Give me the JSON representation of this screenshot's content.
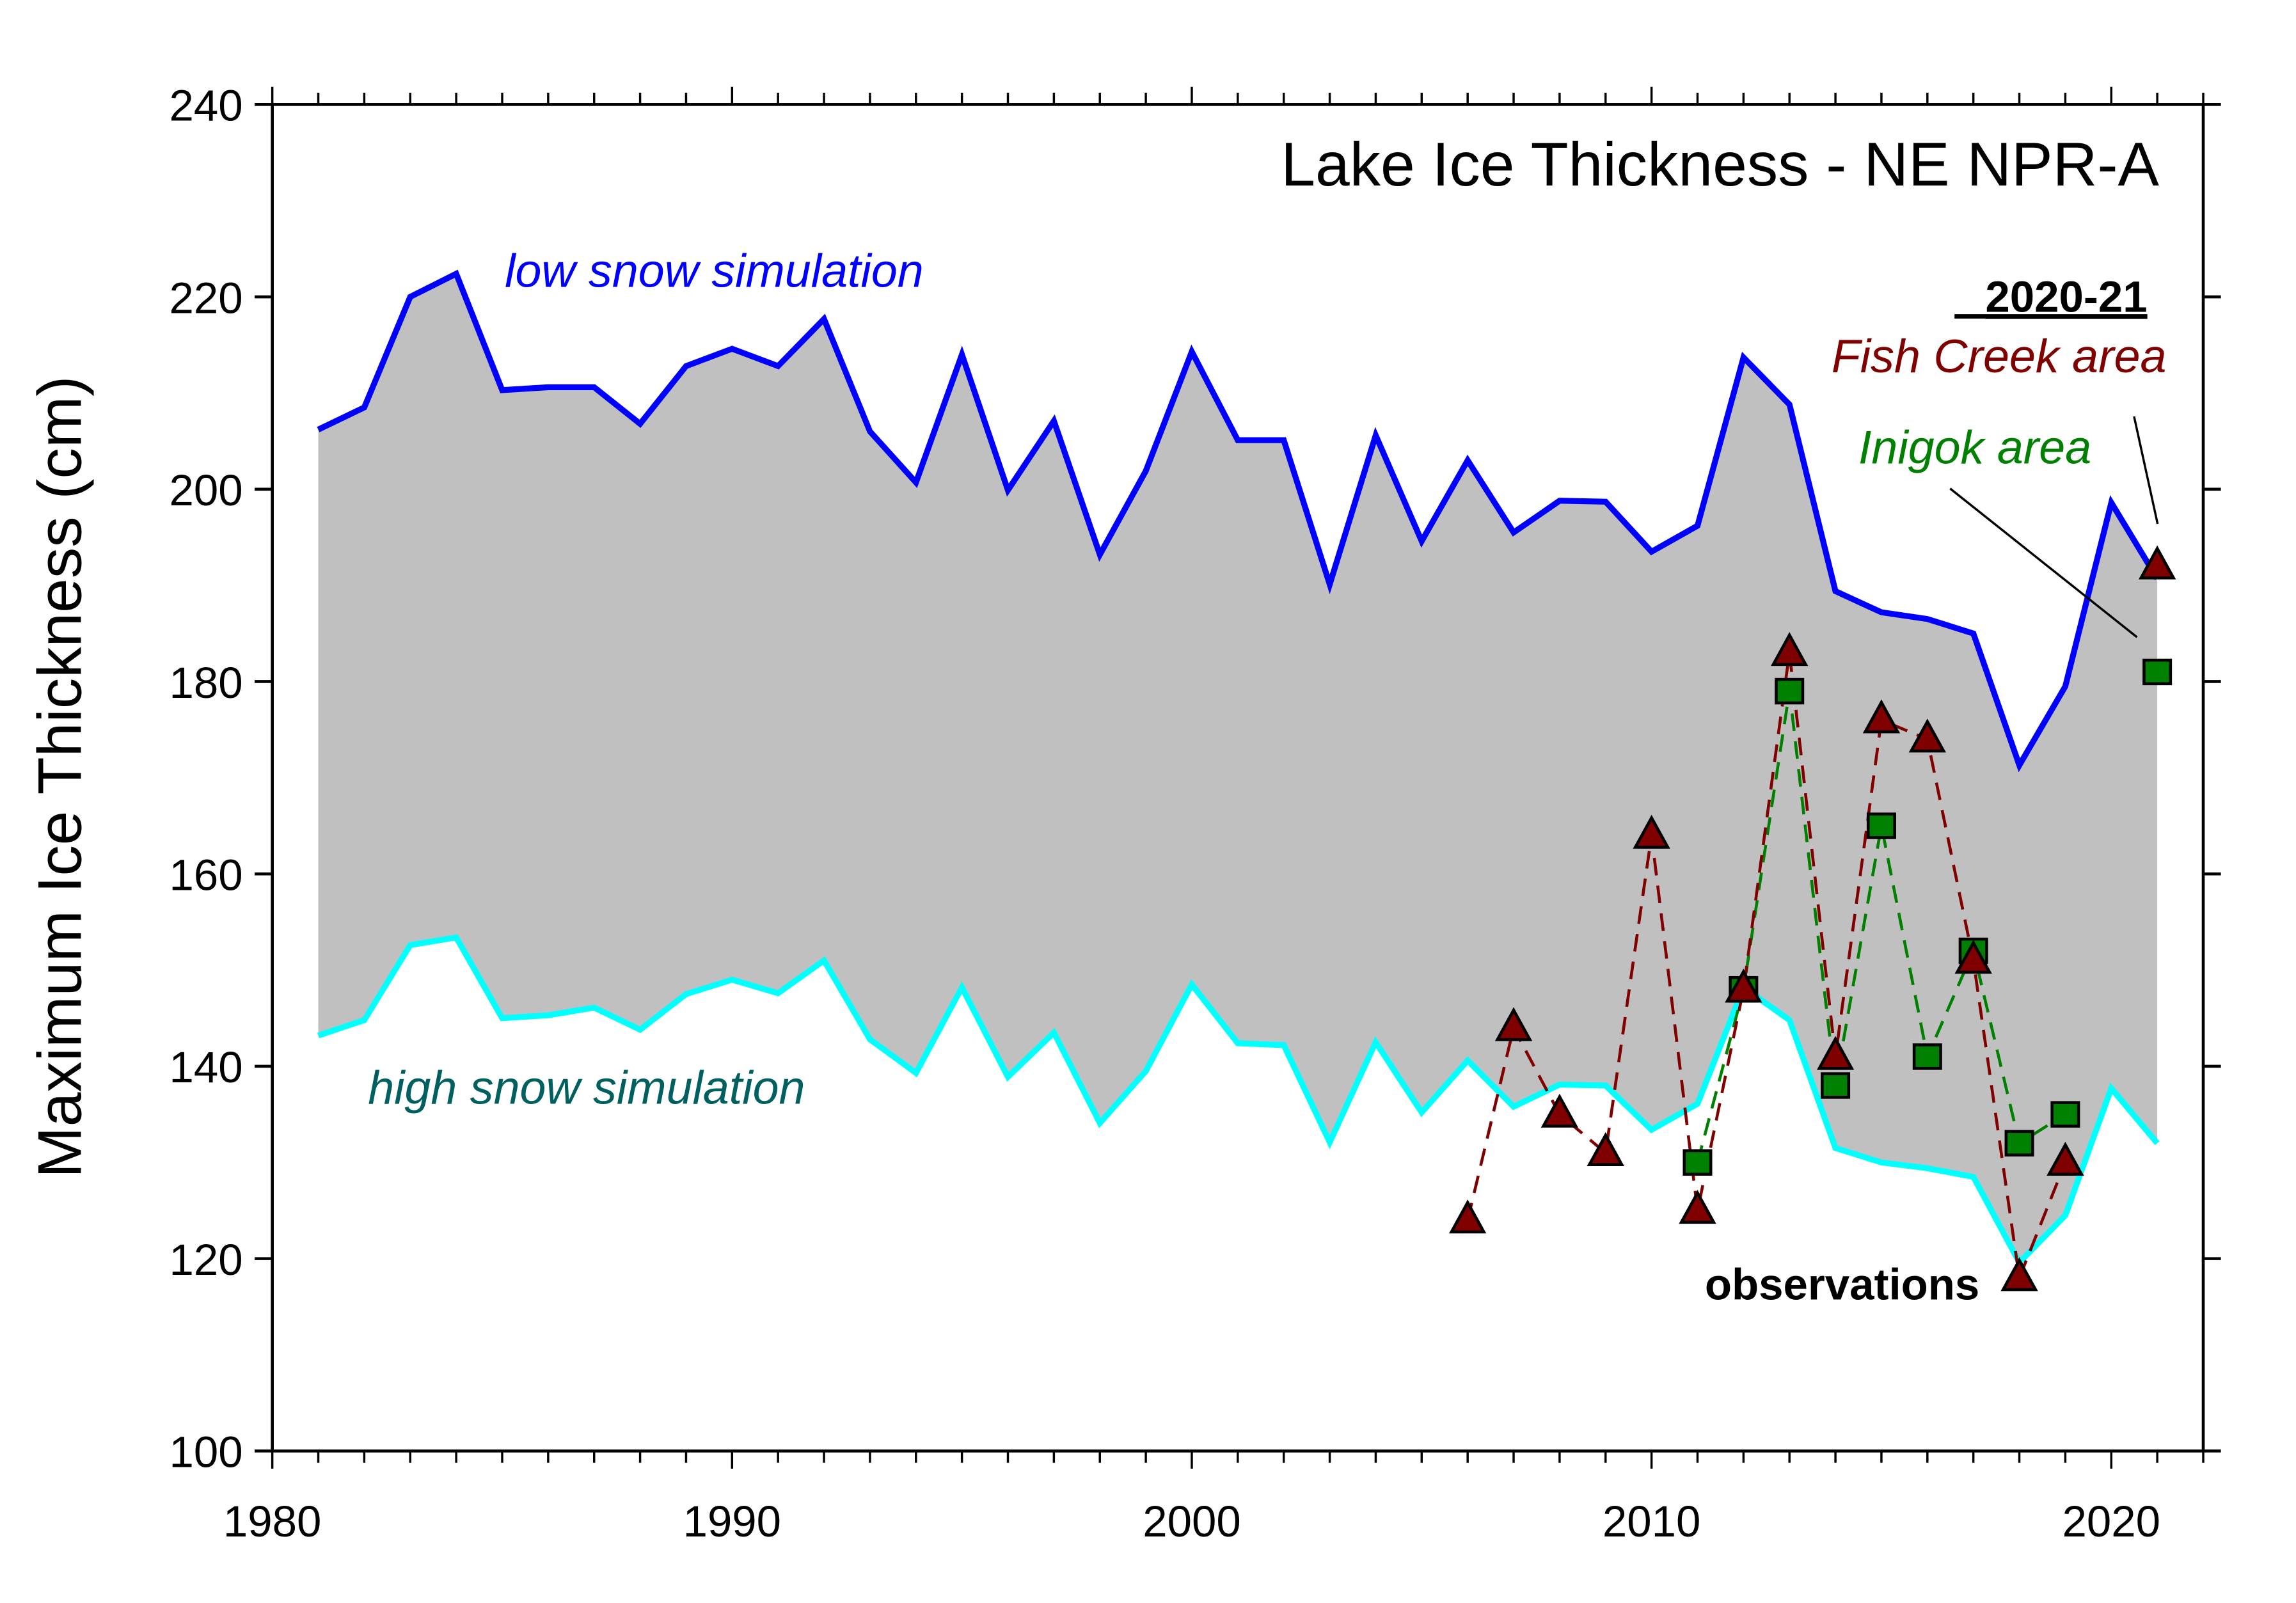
{
  "chart_data": {
    "type": "line",
    "title": "Lake Ice Thickness - NE NPR-A",
    "xlabel": "",
    "ylabel": "Maximum Ice Thickness (cm)",
    "xlim": [
      1980,
      2022
    ],
    "ylim": [
      100,
      240
    ],
    "x_ticks": [
      1980,
      1990,
      2000,
      2010,
      2020
    ],
    "x_tick_labels": [
      "1980",
      "1990",
      "2000",
      "2010",
      "2020"
    ],
    "x_minor_tick_step": 1,
    "y_ticks": [
      100,
      120,
      140,
      160,
      180,
      200,
      220,
      240
    ],
    "y_tick_labels": [
      "100",
      "120",
      "140",
      "160",
      "180",
      "200",
      "220",
      "240"
    ],
    "grid": false,
    "legend": "none (inline annotations)",
    "shaded_range": {
      "description": "band between low and high snow simulations",
      "color": "#c0c0c0"
    },
    "series": [
      {
        "name": "low snow simulation",
        "kind": "line",
        "color": "#0000ff",
        "x": [
          1981,
          1982,
          1983,
          1984,
          1985,
          1986,
          1987,
          1988,
          1989,
          1990,
          1991,
          1992,
          1993,
          1994,
          1995,
          1996,
          1997,
          1998,
          1999,
          2000,
          2001,
          2002,
          2003,
          2004,
          2005,
          2006,
          2007,
          2008,
          2009,
          2010,
          2011,
          2012,
          2013,
          2014,
          2015,
          2016,
          2017,
          2018,
          2019,
          2020,
          2021
        ],
        "values": [
          206.2,
          208.5,
          220.0,
          222.4,
          210.3,
          210.6,
          210.6,
          206.8,
          212.8,
          214.6,
          212.8,
          217.7,
          206.0,
          200.7,
          214.0,
          199.9,
          207.1,
          193.2,
          201.9,
          214.3,
          205.1,
          205.1,
          190.1,
          205.6,
          194.6,
          203.0,
          195.5,
          198.8,
          198.7,
          193.5,
          196.2,
          213.7,
          208.8,
          189.4,
          187.2,
          186.5,
          185.0,
          171.3,
          179.5,
          198.6,
          190.7
        ]
      },
      {
        "name": "high snow simulation",
        "kind": "line",
        "color": "#00ffff",
        "label_color": "#005f5f",
        "x": [
          1981,
          1982,
          1983,
          1984,
          1985,
          1986,
          1987,
          1988,
          1989,
          1990,
          1991,
          1992,
          1993,
          1994,
          1995,
          1996,
          1997,
          1998,
          1999,
          2000,
          2001,
          2002,
          2003,
          2004,
          2005,
          2006,
          2007,
          2008,
          2009,
          2010,
          2011,
          2012,
          2013,
          2014,
          2015,
          2016,
          2017,
          2018,
          2019,
          2020,
          2021
        ],
        "values": [
          143.2,
          144.8,
          152.6,
          153.4,
          145.0,
          145.3,
          146.1,
          143.8,
          147.5,
          149.0,
          147.6,
          151.0,
          142.8,
          139.3,
          148.2,
          138.9,
          143.5,
          134.1,
          139.5,
          148.5,
          142.4,
          142.2,
          132.1,
          142.5,
          135.2,
          140.6,
          135.8,
          138.1,
          138.0,
          133.4,
          136.1,
          148.2,
          144.8,
          131.5,
          130.0,
          129.4,
          128.5,
          119.6,
          124.5,
          137.7,
          132.0
        ]
      },
      {
        "name": "Fish Creek area",
        "kind": "observations",
        "marker": "triangle",
        "color": "#800000",
        "line_style": "dashed",
        "x": [
          2006,
          2007,
          2008,
          2009,
          2010,
          2011,
          2012,
          2013,
          2014,
          2015,
          2016,
          2017,
          2018,
          2019,
          2021
        ],
        "values": [
          124,
          144,
          135,
          131,
          164,
          125,
          148,
          183,
          141,
          176,
          174,
          151,
          118,
          130,
          192
        ],
        "connected_until": 2019
      },
      {
        "name": "Inigok area",
        "kind": "observations",
        "marker": "square",
        "color": "#008000",
        "line_style": "dashed",
        "x": [
          2011,
          2012,
          2013,
          2014,
          2015,
          2016,
          2017,
          2018,
          2019,
          2021
        ],
        "values": [
          130,
          148,
          179,
          138,
          165,
          141,
          152,
          132,
          135,
          181
        ],
        "connected_until": 2019
      }
    ],
    "annotations": [
      {
        "text": "low snow simulation",
        "color": "#0000ff",
        "style": "italic"
      },
      {
        "text": "high snow simulation",
        "color": "#005f5f",
        "style": "italic"
      },
      {
        "text": "2020-21",
        "color": "#000000",
        "style": "bold underline"
      },
      {
        "text": "Fish Creek area",
        "color": "#800000",
        "style": "italic"
      },
      {
        "text": "Inigok area",
        "color": "#008000",
        "style": "italic"
      },
      {
        "text": "observations",
        "color": "#000000",
        "style": "bold"
      }
    ]
  }
}
